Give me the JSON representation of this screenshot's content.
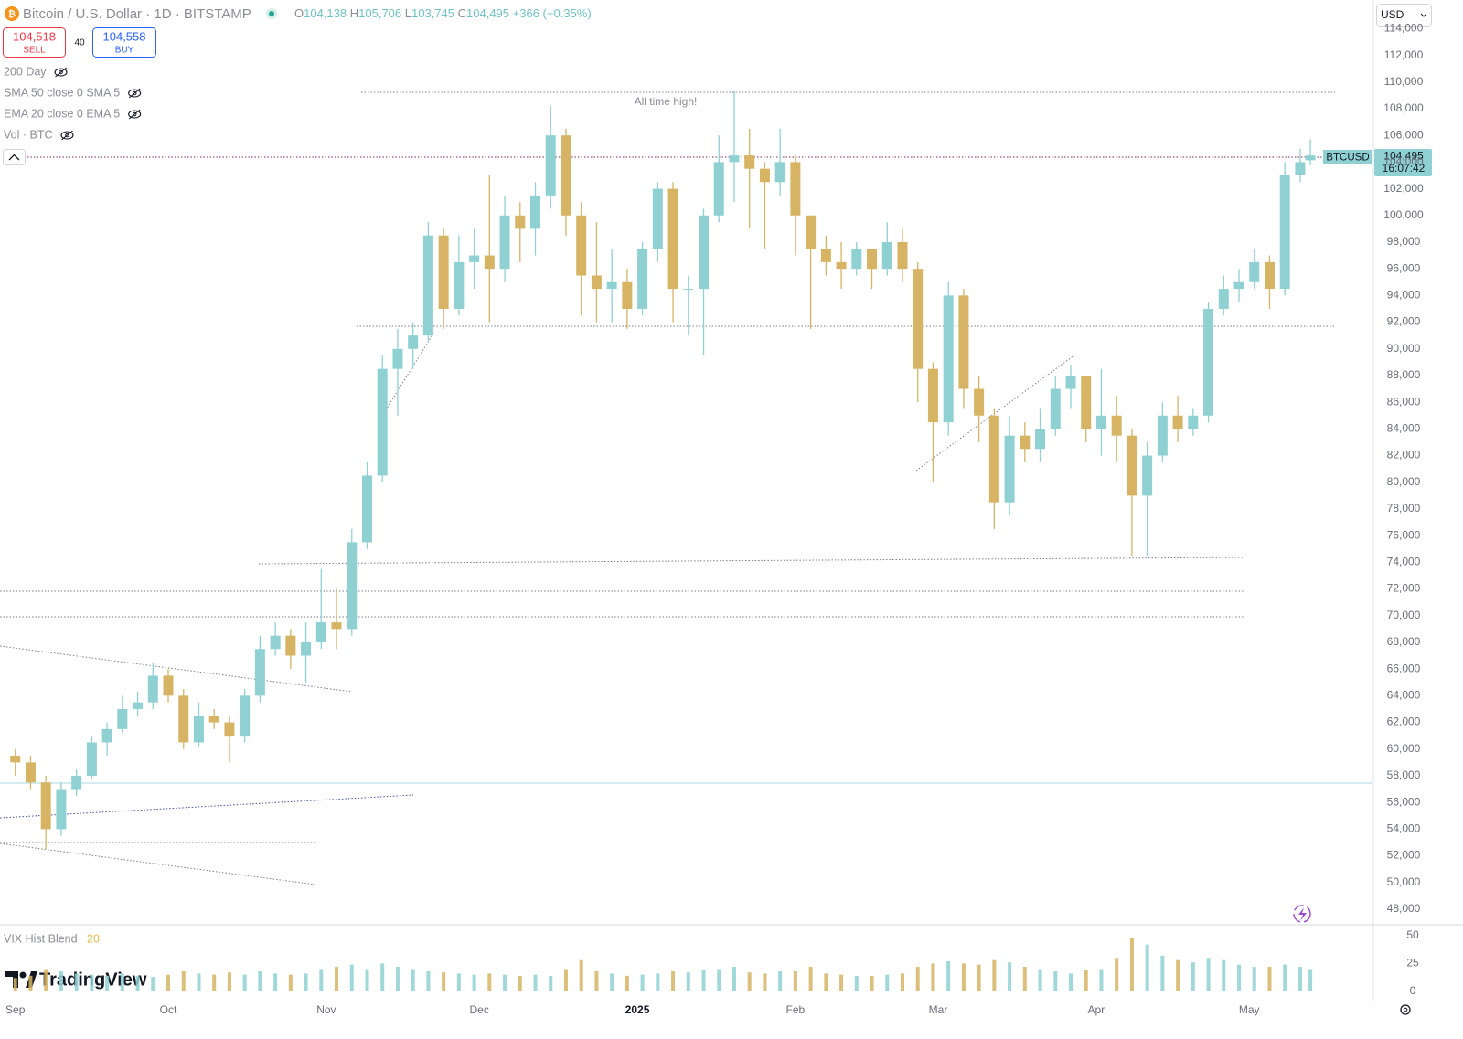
{
  "ui": {
    "symbol": "Bitcoin / U.S. Dollar · 1D · BITSTAMP",
    "ohlc": [
      "O",
      "104,138",
      "H",
      "105,706",
      "L",
      "103,745",
      "C",
      "104,495"
    ],
    "change": "+366 (+0.35%)",
    "sell_price": "104,518",
    "sell": "SELL",
    "spread": "40",
    "buy_price": "104,558",
    "buy": "BUY",
    "indicators": [
      "200 Day",
      "SMA 50 close 0 SMA 5",
      "EMA 20 close 0 EMA 5",
      "Vol · BTC"
    ],
    "currency": "USD",
    "price_tag": {
      "symbol": "BTCUSD",
      "price": "104,495",
      "countdown": "16:07:42"
    },
    "annotation": "All time high!",
    "logo": "TradingView"
  },
  "chart_data": [
    {
      "type": "candlestick",
      "up_color": "#8fd1d3",
      "down_color": "#d6b463",
      "x": [
        0,
        3,
        6,
        9,
        12,
        15,
        18,
        21,
        24,
        27,
        30,
        33,
        36,
        39,
        42,
        45,
        48,
        51,
        54,
        57,
        60,
        63,
        66,
        69,
        72,
        75,
        78,
        81,
        84,
        87,
        90,
        93,
        96,
        99,
        102,
        105,
        108,
        111,
        114,
        117,
        120,
        123,
        126,
        129,
        132,
        135,
        138,
        141,
        144,
        147,
        150,
        153,
        156,
        159,
        162,
        165,
        168,
        171,
        174,
        177,
        180,
        183,
        186,
        189,
        192,
        195,
        198,
        201,
        204,
        207,
        210,
        213,
        216,
        219,
        222,
        225,
        228,
        231,
        234,
        237,
        240,
        243,
        246,
        249,
        252,
        254
      ],
      "open": [
        59500,
        59000,
        57500,
        54000,
        57000,
        58000,
        60500,
        61500,
        63000,
        63500,
        65500,
        64000,
        60500,
        62500,
        62000,
        61000,
        64000,
        67500,
        68500,
        67000,
        68000,
        69500,
        69000,
        75500,
        80500,
        88500,
        90000,
        91000,
        98500,
        93000,
        96500,
        97000,
        96000,
        100000,
        99000,
        101500,
        106000,
        100000,
        95500,
        94500,
        95000,
        93000,
        97500,
        102000,
        94500,
        94500,
        100000,
        104000,
        104500,
        103500,
        102500,
        104000,
        100000,
        97500,
        96500,
        96000,
        97500,
        96000,
        98000,
        96000,
        88500,
        84500,
        94000,
        87000,
        85000,
        78500,
        83500,
        82500,
        84000,
        87000,
        88000,
        84000,
        85000,
        83500,
        79000,
        82000,
        85000,
        84000,
        85000,
        93000,
        94500,
        95000,
        96500,
        94500,
        103000,
        104138
      ],
      "high": [
        60000,
        59500,
        58000,
        57500,
        58500,
        61000,
        62000,
        64000,
        64300,
        66500,
        66000,
        64500,
        63500,
        63000,
        62500,
        64500,
        68500,
        69500,
        69000,
        69500,
        73500,
        72000,
        76500,
        81500,
        89500,
        91500,
        92000,
        99500,
        99000,
        98500,
        99000,
        103000,
        101500,
        101000,
        102500,
        108200,
        106500,
        101000,
        99500,
        97500,
        96000,
        98000,
        102500,
        102500,
        95500,
        100500,
        106000,
        109300,
        106500,
        104000,
        106500,
        104500,
        100000,
        98500,
        98000,
        98000,
        97500,
        99500,
        99000,
        96500,
        89000,
        95000,
        94500,
        88000,
        85500,
        85000,
        84500,
        85500,
        88000,
        88800,
        88000,
        88500,
        86500,
        84000,
        83000,
        86000,
        86500,
        85500,
        93500,
        95500,
        96000,
        97500,
        97000,
        104000,
        105000,
        105706
      ],
      "low": [
        58000,
        57000,
        52500,
        53500,
        56500,
        57800,
        59500,
        61200,
        62500,
        63000,
        63500,
        60000,
        60200,
        61500,
        59000,
        60500,
        63500,
        67000,
        66000,
        65000,
        67500,
        67500,
        68500,
        75000,
        80000,
        85000,
        88500,
        90500,
        91500,
        92500,
        94500,
        92000,
        95000,
        96500,
        97000,
        100500,
        98500,
        92500,
        92000,
        92000,
        91500,
        92500,
        96500,
        92000,
        91000,
        89500,
        99500,
        101000,
        99000,
        97500,
        101500,
        97000,
        91500,
        95500,
        94500,
        95500,
        94500,
        95500,
        95000,
        86000,
        80000,
        83500,
        85500,
        83000,
        76500,
        77500,
        81500,
        81500,
        83500,
        85500,
        83000,
        82000,
        81500,
        74500,
        74500,
        81500,
        83000,
        83500,
        84500,
        92500,
        93500,
        94500,
        93000,
        94000,
        102500,
        103745
      ],
      "close": [
        59000,
        57500,
        54000,
        57000,
        58000,
        60500,
        61500,
        63000,
        63500,
        65500,
        64000,
        60500,
        62500,
        62000,
        61000,
        64000,
        67500,
        68500,
        67000,
        68000,
        69500,
        69000,
        75500,
        80500,
        88500,
        90000,
        91000,
        98500,
        93000,
        96500,
        97000,
        96000,
        100000,
        99000,
        101500,
        106000,
        100000,
        95500,
        94500,
        95000,
        93000,
        97500,
        102000,
        94500,
        94500,
        100000,
        104000,
        104500,
        103500,
        102500,
        104000,
        100000,
        97500,
        96500,
        96000,
        97500,
        96000,
        98000,
        96000,
        88500,
        84500,
        94000,
        87000,
        85000,
        78500,
        83500,
        82500,
        84000,
        87000,
        88000,
        84000,
        85000,
        83500,
        79000,
        82000,
        85000,
        84000,
        85000,
        93000,
        94500,
        95000,
        96500,
        94500,
        103000,
        104000,
        104495
      ],
      "xlim": [
        -3,
        266
      ],
      "xticks": [
        {
          "value": 0,
          "label": "Sep"
        },
        {
          "value": 30,
          "label": "Oct"
        },
        {
          "value": 61,
          "label": "Nov"
        },
        {
          "value": 91,
          "label": "Dec"
        },
        {
          "value": 122,
          "label": "2025"
        },
        {
          "value": 153,
          "label": "Feb"
        },
        {
          "value": 181,
          "label": "Mar"
        },
        {
          "value": 212,
          "label": "Apr"
        },
        {
          "value": 242,
          "label": "May"
        }
      ],
      "ylim": [
        46900,
        116150
      ],
      "yticks": [
        {
          "value": 48000,
          "label": "48,000"
        },
        {
          "value": 50000,
          "label": "50,000"
        },
        {
          "value": 52000,
          "label": "52,000"
        },
        {
          "value": 54000,
          "label": "54,000"
        },
        {
          "value": 56000,
          "label": "56,000"
        },
        {
          "value": 58000,
          "label": "58,000"
        },
        {
          "value": 60000,
          "label": "60,000"
        },
        {
          "value": 62000,
          "label": "62,000"
        },
        {
          "value": 64000,
          "label": "64,000"
        },
        {
          "value": 66000,
          "label": "66,000"
        },
        {
          "value": 68000,
          "label": "68,000"
        },
        {
          "value": 70000,
          "label": "70,000"
        },
        {
          "value": 72000,
          "label": "72,000"
        },
        {
          "value": 74000,
          "label": "74,000"
        },
        {
          "value": 76000,
          "label": "76,000"
        },
        {
          "value": 78000,
          "label": "78,000"
        },
        {
          "value": 80000,
          "label": "80,000"
        },
        {
          "value": 82000,
          "label": "82,000"
        },
        {
          "value": 84000,
          "label": "84,000"
        },
        {
          "value": 86000,
          "label": "86,000"
        },
        {
          "value": 88000,
          "label": "88,000"
        },
        {
          "value": 90000,
          "label": "90,000"
        },
        {
          "value": 92000,
          "label": "92,000"
        },
        {
          "value": 94000,
          "label": "94,000"
        },
        {
          "value": 96000,
          "label": "96,000"
        },
        {
          "value": 98000,
          "label": "98,000"
        },
        {
          "value": 100000,
          "label": "100,000"
        },
        {
          "value": 102000,
          "label": "102,000"
        },
        {
          "value": 104000,
          "label": "104,000"
        },
        {
          "value": 106000,
          "label": "106,000"
        },
        {
          "value": 108000,
          "label": "108,000"
        },
        {
          "value": 110000,
          "label": "110,000"
        },
        {
          "value": 112000,
          "label": "112,000"
        },
        {
          "value": 114000,
          "label": "114,000"
        }
      ],
      "grid": false
    },
    {
      "type": "bar",
      "title": "VIX Hist Blend",
      "length": 20,
      "x": [
        0,
        3,
        6,
        9,
        12,
        15,
        18,
        21,
        24,
        27,
        30,
        33,
        36,
        39,
        42,
        45,
        48,
        51,
        54,
        57,
        60,
        63,
        66,
        69,
        72,
        75,
        78,
        81,
        84,
        87,
        90,
        93,
        96,
        99,
        102,
        105,
        108,
        111,
        114,
        117,
        120,
        123,
        126,
        129,
        132,
        135,
        138,
        141,
        144,
        147,
        150,
        153,
        156,
        159,
        162,
        165,
        168,
        171,
        174,
        177,
        180,
        183,
        186,
        189,
        192,
        195,
        198,
        201,
        204,
        207,
        210,
        213,
        216,
        219,
        222,
        225,
        228,
        231,
        234,
        237,
        240,
        243,
        246,
        249,
        252,
        254
      ],
      "values": [
        12,
        14,
        20,
        18,
        16,
        15,
        14,
        16,
        14,
        13,
        15,
        18,
        16,
        15,
        17,
        15,
        18,
        16,
        15,
        16,
        20,
        22,
        24,
        20,
        25,
        22,
        20,
        18,
        17,
        16,
        15,
        16,
        15,
        14,
        15,
        14,
        20,
        28,
        18,
        16,
        14,
        15,
        16,
        18,
        17,
        19,
        20,
        22,
        17,
        16,
        18,
        18,
        22,
        16,
        15,
        14,
        14,
        15,
        16,
        22,
        25,
        27,
        25,
        24,
        28,
        26,
        22,
        20,
        18,
        16,
        19,
        20,
        30,
        48,
        42,
        32,
        28,
        26,
        30,
        28,
        24,
        22,
        22,
        24,
        22,
        20
      ],
      "xlim": [
        -3,
        266
      ],
      "ylim": [
        0,
        58
      ],
      "yticks": [
        0,
        25,
        50
      ]
    }
  ]
}
